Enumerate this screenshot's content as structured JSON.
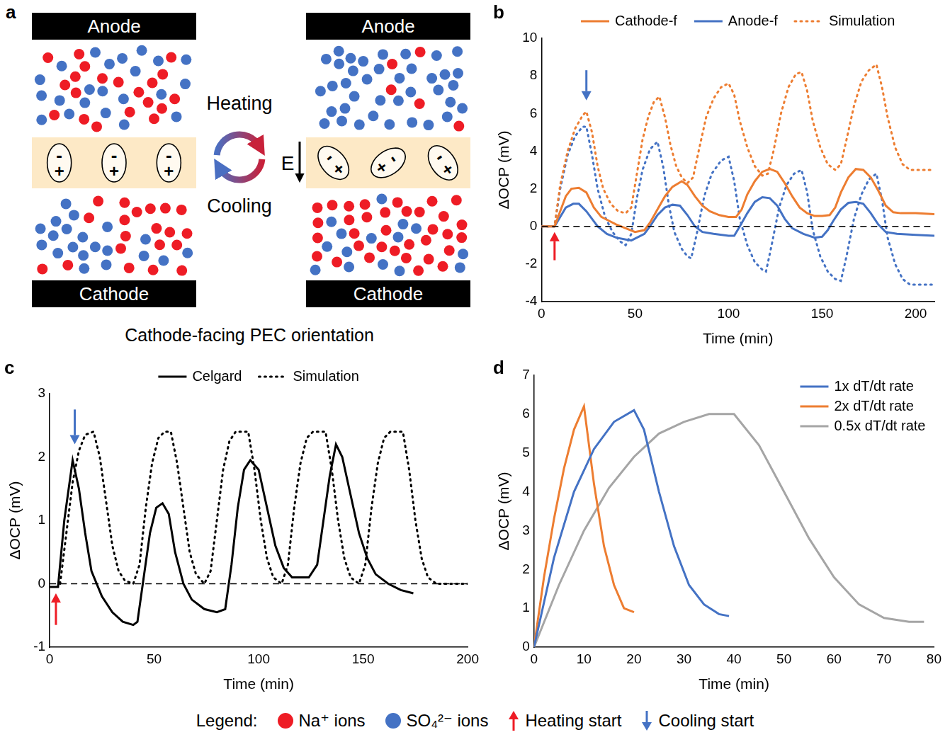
{
  "diagram": {
    "label": "a",
    "heating": "Heating",
    "cooling": "Cooling",
    "field": "E",
    "caption": "Cathode-facing PEC orientation",
    "dipole_signs": [
      "-",
      "+"
    ],
    "panels": [
      {
        "anode": "Anode",
        "cathode": "Cathode",
        "dipoles": 3,
        "dipole_tilt": false,
        "anode_side_ions": {
          "na": 20,
          "so4": 22
        },
        "cathode_side_ions": {
          "na": 20,
          "so4": 20
        }
      },
      {
        "anode": "Anode",
        "cathode": "Cathode",
        "dipoles": 3,
        "dipole_tilt": true,
        "anode_side_ions": {
          "na": 5,
          "so4": 38
        },
        "cathode_side_ions": {
          "na": 34,
          "so4": 15
        }
      }
    ]
  },
  "chart_data": [
    {
      "label": "b",
      "type": "line",
      "x_label": "Time (min)",
      "y_label": "ΔOCP (mV)",
      "xlim": [
        0,
        210
      ],
      "xticks": [
        0,
        50,
        100,
        150,
        200
      ],
      "ylim": [
        -4,
        10
      ],
      "yticks": [
        -4,
        -2,
        0,
        2,
        4,
        6,
        8,
        10
      ],
      "grid": false,
      "legend": "top",
      "series": [
        {
          "x": [
            0,
            210
          ],
          "values": [
            0,
            0
          ],
          "color": "#000000",
          "line_style": "dashed"
        },
        {
          "name": "Cathode-f",
          "color": "#ed7d31",
          "line_style": "solid",
          "x": [
            0,
            7,
            10,
            13,
            16,
            20,
            24,
            28,
            32,
            36,
            40,
            45,
            50,
            55,
            58,
            62,
            66,
            70,
            75,
            78,
            82,
            86,
            90,
            95,
            100,
            104,
            107,
            110,
            114,
            118,
            122,
            126,
            130,
            134,
            138,
            142,
            146,
            150,
            154,
            157,
            160,
            164,
            168,
            172,
            176,
            180,
            184,
            188,
            192,
            200,
            210
          ],
          "values": [
            0,
            0,
            0.8,
            1.6,
            2.0,
            2.05,
            1.8,
            1.0,
            0.5,
            0.3,
            0.1,
            -0.1,
            -0.3,
            -0.2,
            0.2,
            0.9,
            1.6,
            2.1,
            2.4,
            2.2,
            1.6,
            1.1,
            0.8,
            0.6,
            0.5,
            0.5,
            0.9,
            1.7,
            2.4,
            2.9,
            3.05,
            2.9,
            2.3,
            1.6,
            1.0,
            0.7,
            0.55,
            0.55,
            0.6,
            1.0,
            1.8,
            2.6,
            3.05,
            3.0,
            2.6,
            1.9,
            1.1,
            0.75,
            0.7,
            0.7,
            0.65
          ]
        },
        {
          "name": "Anode-f",
          "color": "#4472c4",
          "line_style": "solid",
          "x": [
            0,
            7,
            10,
            13,
            17,
            20,
            24,
            30,
            35,
            40,
            45,
            48,
            55,
            58,
            62,
            66,
            70,
            74,
            78,
            82,
            86,
            92,
            100,
            103,
            106,
            110,
            114,
            118,
            122,
            126,
            130,
            134,
            140,
            146,
            150,
            153,
            156,
            160,
            164,
            168,
            172,
            176,
            180,
            184,
            190,
            200,
            210
          ],
          "values": [
            0,
            0,
            0.5,
            1.0,
            1.2,
            1.2,
            0.8,
            0,
            -0.4,
            -0.6,
            -0.7,
            -0.75,
            -0.4,
            0,
            0.6,
            1.0,
            1.15,
            1.1,
            0.6,
            0,
            -0.3,
            -0.4,
            -0.5,
            -0.5,
            0,
            0.7,
            1.3,
            1.55,
            1.5,
            1.1,
            0.4,
            -0.1,
            -0.4,
            -0.6,
            -0.55,
            -0.2,
            0.3,
            0.9,
            1.25,
            1.3,
            1.2,
            0.7,
            0.1,
            -0.3,
            -0.4,
            -0.45,
            -0.5
          ]
        },
        {
          "name": "Simulation",
          "color": "#ed7d31",
          "line_style": "dotted",
          "x": [
            0,
            7,
            10,
            14,
            18,
            22,
            24,
            27,
            30,
            33,
            37,
            41,
            45,
            48,
            51,
            54,
            57,
            60,
            63,
            66,
            69,
            72,
            75,
            78,
            81,
            84,
            88,
            92,
            96,
            100,
            103,
            106,
            110,
            114,
            118,
            121,
            124,
            128,
            132,
            136,
            139,
            142,
            145,
            149,
            153,
            157,
            160,
            163,
            167,
            171,
            175,
            179,
            182,
            185,
            189,
            193,
            197,
            210
          ],
          "values": [
            0,
            0,
            2.2,
            4.0,
            5.2,
            5.9,
            6.1,
            5.0,
            3.2,
            2.0,
            1.2,
            0.8,
            0.7,
            1.0,
            2.8,
            4.6,
            5.8,
            6.6,
            6.9,
            5.8,
            4.3,
            3.2,
            2.6,
            2.3,
            2.6,
            4.0,
            5.8,
            6.8,
            7.4,
            7.6,
            7.0,
            5.6,
            4.2,
            3.2,
            2.7,
            2.8,
            4.0,
            6.0,
            7.4,
            8.1,
            8.2,
            7.2,
            5.6,
            4.2,
            3.3,
            3.0,
            3.3,
            4.6,
            6.4,
            7.7,
            8.3,
            8.6,
            7.4,
            5.8,
            4.2,
            3.3,
            3.0,
            3.0
          ]
        },
        {
          "color": "#4472c4",
          "line_style": "dotted",
          "x": [
            0,
            7,
            10,
            14,
            18,
            22,
            24,
            27,
            30,
            34,
            38,
            42,
            45,
            48,
            51,
            54,
            58,
            62,
            65,
            68,
            71,
            75,
            78,
            80,
            83,
            87,
            91,
            96,
            100,
            103,
            106,
            110,
            114,
            118,
            120,
            123,
            127,
            131,
            135,
            139,
            142,
            145,
            149,
            153,
            157,
            160,
            163,
            167,
            171,
            175,
            179,
            182,
            185,
            189,
            193,
            197,
            210
          ],
          "values": [
            0,
            0,
            2.0,
            3.8,
            4.8,
            5.3,
            5.3,
            3.8,
            2.0,
            0.5,
            -0.3,
            -0.8,
            -1.0,
            -0.4,
            1.5,
            3.0,
            4.1,
            4.5,
            3.2,
            1.2,
            -0.3,
            -1.2,
            -1.6,
            -1.7,
            -0.4,
            1.6,
            2.8,
            3.5,
            3.7,
            2.4,
            0.4,
            -1.0,
            -1.9,
            -2.3,
            -2.4,
            -1.0,
            1.0,
            2.2,
            2.8,
            3.0,
            1.8,
            -0.2,
            -1.6,
            -2.4,
            -2.8,
            -2.9,
            -1.6,
            0.4,
            1.7,
            2.5,
            2.8,
            1.4,
            -0.6,
            -2.0,
            -2.8,
            -3.1,
            -3.1
          ]
        }
      ],
      "arrows": [
        {
          "direction": "up",
          "color": "#ee1c25",
          "x": 7,
          "y_from": -1.8,
          "y_to": -0.3
        },
        {
          "direction": "down",
          "color": "#4472c4",
          "x": 24,
          "y_from": 8.3,
          "y_to": 6.7
        }
      ]
    },
    {
      "label": "c",
      "type": "line",
      "x_label": "Time (min)",
      "y_label": "ΔOCP (mV)",
      "xlim": [
        0,
        200
      ],
      "xticks": [
        0,
        50,
        100,
        150,
        200
      ],
      "ylim": [
        -1,
        3
      ],
      "yticks": [
        -1,
        0,
        1,
        2,
        3
      ],
      "grid": false,
      "legend": "top",
      "series": [
        {
          "x": [
            0,
            200
          ],
          "values": [
            0,
            0
          ],
          "color": "#000000",
          "line_style": "dashed"
        },
        {
          "name": "Celgard",
          "color": "#000000",
          "line_style": "solid",
          "x": [
            0,
            4,
            7,
            11,
            14,
            17,
            20,
            25,
            30,
            35,
            40,
            42,
            45,
            48,
            51,
            54,
            57,
            60,
            64,
            68,
            74,
            80,
            84,
            87,
            90,
            93,
            96,
            100,
            104,
            108,
            112,
            116,
            120,
            124,
            128,
            131,
            134,
            137,
            140,
            144,
            148,
            152,
            156,
            162,
            168,
            174
          ],
          "values": [
            -0.05,
            -0.05,
            1.0,
            1.95,
            1.5,
            0.8,
            0.2,
            -0.2,
            -0.45,
            -0.6,
            -0.65,
            -0.6,
            0.1,
            0.8,
            1.2,
            1.27,
            1.1,
            0.5,
            0,
            -0.25,
            -0.4,
            -0.45,
            -0.4,
            0.3,
            1.2,
            1.8,
            1.95,
            1.8,
            1.2,
            0.6,
            0.25,
            0.1,
            0.1,
            0.1,
            0.3,
            1.0,
            1.7,
            2.2,
            2.0,
            1.4,
            0.8,
            0.4,
            0.15,
            0,
            -0.1,
            -0.15
          ]
        },
        {
          "name": "Simulation",
          "color": "#000000",
          "line_style": "dotted",
          "x": [
            5,
            8,
            11,
            14,
            17,
            21,
            24,
            27,
            30,
            33,
            36,
            40,
            43,
            46,
            49,
            52,
            55,
            58,
            61,
            64,
            67,
            70,
            74,
            77,
            80,
            83,
            86,
            89,
            95,
            98,
            101,
            104,
            107,
            111,
            114,
            117,
            120,
            123,
            126,
            132,
            135,
            138,
            141,
            144,
            148,
            151,
            154,
            157,
            160,
            163,
            169,
            172,
            175,
            178,
            181,
            185,
            200
          ],
          "values": [
            0,
            0.8,
            1.6,
            2.1,
            2.35,
            2.4,
            2.0,
            1.3,
            0.6,
            0.2,
            0.05,
            0,
            0.3,
            1.2,
            1.9,
            2.3,
            2.4,
            2.4,
            1.9,
            1.2,
            0.5,
            0.15,
            0,
            0.2,
            1.0,
            1.8,
            2.25,
            2.4,
            2.4,
            1.8,
            1.0,
            0.4,
            0.1,
            0,
            0.3,
            1.2,
            1.9,
            2.3,
            2.4,
            2.4,
            1.8,
            1.0,
            0.4,
            0.1,
            0,
            0.3,
            1.2,
            1.9,
            2.3,
            2.4,
            2.4,
            1.8,
            1.0,
            0.4,
            0.1,
            0,
            0
          ]
        }
      ],
      "arrows": [
        {
          "direction": "up",
          "color": "#ee1c25",
          "x": 3,
          "y_from": -0.65,
          "y_to": -0.15
        },
        {
          "direction": "down",
          "color": "#4472c4",
          "x": 12,
          "y_from": 2.75,
          "y_to": 2.2
        }
      ]
    },
    {
      "label": "d",
      "type": "line",
      "x_label": "Time (min)",
      "y_label": "ΔOCP (mV)",
      "xlim": [
        0,
        80
      ],
      "xticks": [
        0,
        10,
        20,
        30,
        40,
        50,
        60,
        70,
        80
      ],
      "ylim": [
        0,
        7
      ],
      "yticks": [
        0,
        1,
        2,
        3,
        4,
        5,
        6,
        7
      ],
      "grid": false,
      "legend": "top-right",
      "series": [
        {
          "name": "1x dT/dt rate",
          "color": "#4472c4",
          "line_style": "solid",
          "x": [
            0,
            4,
            8,
            12,
            16,
            20,
            22,
            25,
            28,
            31,
            34,
            37,
            39
          ],
          "values": [
            0,
            2.3,
            4.0,
            5.1,
            5.8,
            6.1,
            5.6,
            4.0,
            2.6,
            1.6,
            1.1,
            0.85,
            0.8
          ]
        },
        {
          "name": "2x dT/dt rate",
          "color": "#ed7d31",
          "line_style": "solid",
          "x": [
            0,
            2,
            4,
            6,
            8,
            10,
            12,
            14,
            16,
            18,
            20
          ],
          "values": [
            0,
            1.8,
            3.3,
            4.6,
            5.6,
            6.2,
            4.2,
            2.6,
            1.6,
            1.0,
            0.9
          ]
        },
        {
          "name": "0.5x dT/dt rate",
          "color": "#a5a5a5",
          "line_style": "solid",
          "x": [
            0,
            5,
            10,
            15,
            20,
            25,
            30,
            35,
            40,
            45,
            50,
            55,
            60,
            65,
            70,
            75,
            78
          ],
          "values": [
            0,
            1.6,
            3.0,
            4.1,
            4.9,
            5.5,
            5.8,
            6.0,
            6.0,
            5.2,
            4.0,
            2.8,
            1.8,
            1.1,
            0.75,
            0.65,
            0.65
          ]
        }
      ]
    }
  ],
  "key": {
    "title": "Legend:",
    "items": [
      {
        "label": "Na⁺ ions",
        "marker": "circle",
        "color": "#ee1c25"
      },
      {
        "label": "SO₄²⁻ ions",
        "marker": "circle",
        "color": "#4472c4"
      },
      {
        "label": "Heating start",
        "marker": "arrow_up",
        "color": "#ee1c25"
      },
      {
        "label": "Cooling start",
        "marker": "arrow_down",
        "color": "#4472c4"
      }
    ]
  }
}
